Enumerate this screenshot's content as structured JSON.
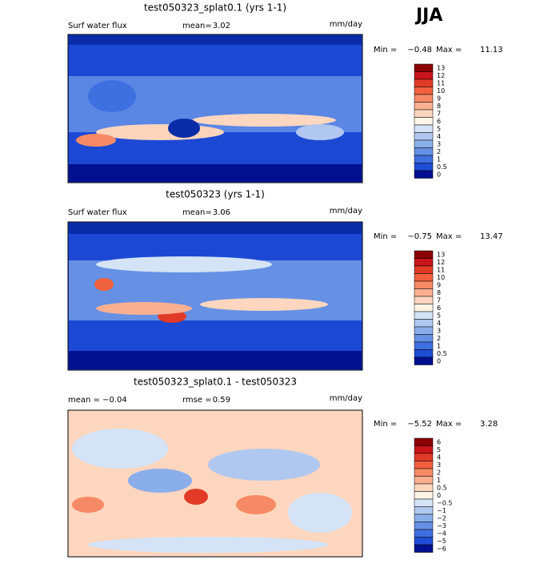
{
  "season": "JJA",
  "panels": [
    {
      "title": "test050323_splat0.1 (yrs 1-1)",
      "left_label": "Surf water flux",
      "stat_label": "mean=",
      "stat_value": "3.02",
      "units": "mm/day",
      "min_label": "Min =",
      "min": "−0.48",
      "max_label": "Max =",
      "max": "11.13",
      "levels": [
        "13",
        "12",
        "11",
        "10",
        "9",
        "8",
        "7",
        "6",
        "5",
        "4",
        "3",
        "2",
        "1",
        "0.5",
        "0"
      ],
      "colors": [
        "#8b0000",
        "#c8141a",
        "#e23a28",
        "#f2603e",
        "#f78a66",
        "#fab090",
        "#fdd6bf",
        "#fff4e6",
        "#d4e3f6",
        "#b0c8ef",
        "#8aaeea",
        "#6690e4",
        "#3f70e0",
        "#1e4ed6",
        "#00108f"
      ]
    },
    {
      "title": "test050323 (yrs 1-1)",
      "left_label": "Surf water flux",
      "stat_label": "mean=",
      "stat_value": "3.06",
      "units": "mm/day",
      "min_label": "Min =",
      "min": "−0.75",
      "max_label": "Max =",
      "max": "13.47",
      "levels": [
        "13",
        "12",
        "11",
        "10",
        "9",
        "8",
        "7",
        "6",
        "5",
        "4",
        "3",
        "2",
        "1",
        "0.5",
        "0"
      ],
      "colors": [
        "#8b0000",
        "#c8141a",
        "#e23a28",
        "#f2603e",
        "#f78a66",
        "#fab090",
        "#fdd6bf",
        "#fff4e6",
        "#d4e3f6",
        "#b0c8ef",
        "#8aaeea",
        "#6690e4",
        "#3f70e0",
        "#1e4ed6",
        "#00108f"
      ]
    },
    {
      "title": "test050323_splat0.1 - test050323",
      "left_label": "mean =  −0.04",
      "stat_label": "rmse =",
      "stat_value": "0.59",
      "units": "mm/day",
      "min_label": "Min =",
      "min": "−5.52",
      "max_label": "Max =",
      "max": "3.28",
      "levels": [
        "6",
        "5",
        "4",
        "3",
        "2",
        "1",
        "0.5",
        "0",
        "−0.5",
        "−1",
        "−2",
        "−3",
        "−4",
        "−5",
        "−6"
      ],
      "colors": [
        "#8b0000",
        "#c8141a",
        "#e23a28",
        "#f2603e",
        "#f78a66",
        "#fab090",
        "#fdd6bf",
        "#fff4e6",
        "#d4e3f6",
        "#b0c8ef",
        "#8aaeea",
        "#6690e4",
        "#3f70e0",
        "#1e4ed6",
        "#00108f"
      ]
    }
  ]
}
